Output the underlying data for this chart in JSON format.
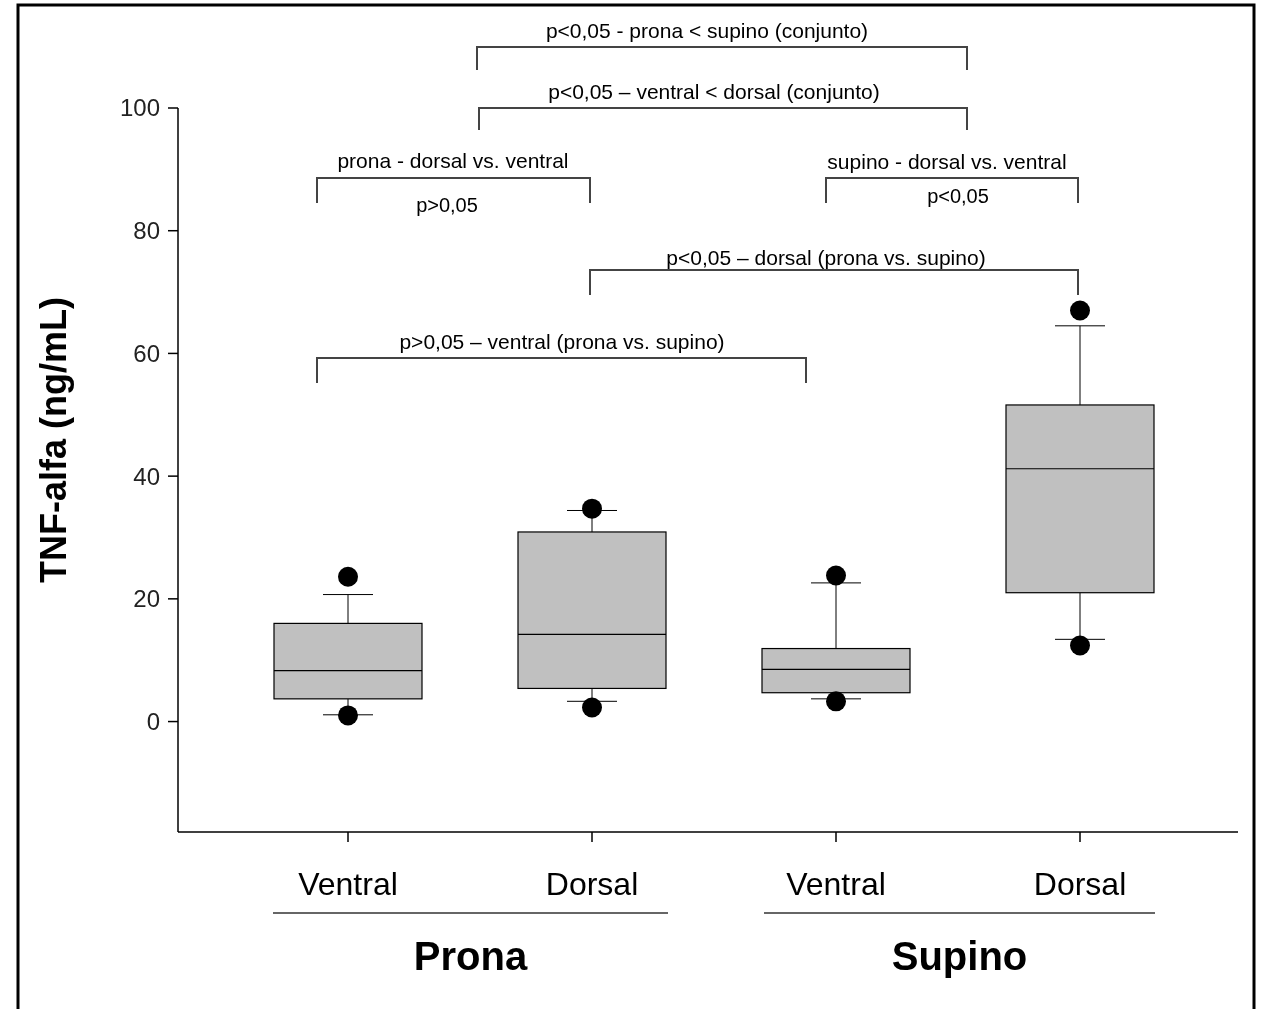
{
  "chart_data": {
    "type": "box",
    "ylabel": "TNF-alfa (ng/mL)",
    "categories": [
      "Ventral",
      "Dorsal",
      "Ventral",
      "Dorsal"
    ],
    "boxes": [
      {
        "low": 1.1,
        "q1": 3.7,
        "median": 8.3,
        "q3": 16,
        "high": 20.7,
        "outliers": [
          23.6,
          1.0
        ]
      },
      {
        "low": 3.3,
        "q1": 5.4,
        "median": 14.2,
        "q3": 30.9,
        "high": 34.4,
        "outliers": [
          34.7,
          2.3
        ]
      },
      {
        "low": 3.7,
        "q1": 4.7,
        "median": 8.5,
        "q3": 11.9,
        "high": 22.6,
        "outliers": [
          23.8,
          3.3
        ]
      },
      {
        "low": 13.4,
        "q1": 21,
        "median": 41.2,
        "q3": 51.6,
        "high": 64.5,
        "outliers": [
          67,
          12.4
        ]
      }
    ],
    "color": "#c0c0c0",
    "ylim": [
      -18,
      100
    ],
    "yticks": [
      0,
      20,
      40,
      60,
      80,
      100
    ],
    "grid": false,
    "annotations": [
      "p<0,05 - prona < supino (conjunto)",
      "p<0,05 – ventral < dorsal (conjunto)",
      "prona - dorsal vs. ventral",
      "p>0,05",
      "supino - dorsal vs. ventral",
      "p<0,05",
      "p<0,05 – dorsal (prona vs. supino)",
      "p>0,05 – ventral (prona vs. supino)",
      "Prona",
      "Supino"
    ]
  }
}
